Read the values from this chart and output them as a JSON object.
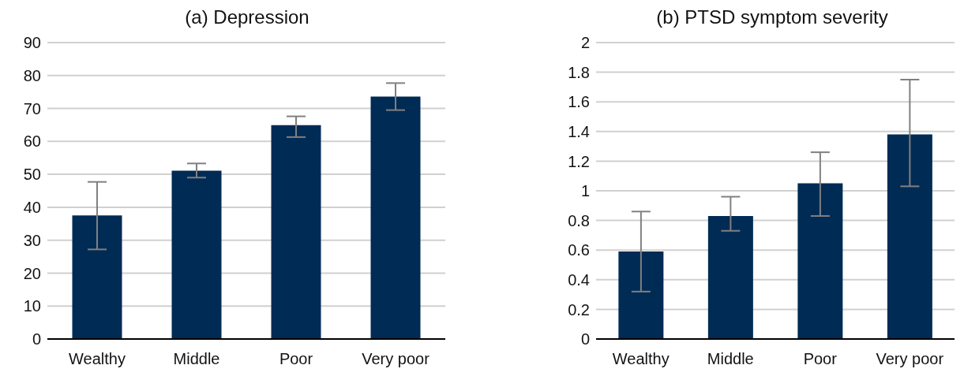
{
  "chart_data": [
    {
      "type": "bar",
      "title": "(a) Depression",
      "categories": [
        "Wealthy",
        "Middle",
        "Poor",
        "Very poor"
      ],
      "values": [
        37.5,
        51.1,
        64.9,
        73.6
      ],
      "errors": [
        [
          27.2,
          47.7
        ],
        [
          49.0,
          53.3
        ],
        [
          61.3,
          67.6
        ],
        [
          69.5,
          77.7
        ]
      ],
      "color": "#002b54",
      "ylim": [
        0,
        90
      ],
      "yticks": [
        0,
        10,
        20,
        30,
        40,
        50,
        60,
        70,
        80,
        90
      ],
      "grid": "y",
      "legend": false
    },
    {
      "type": "bar",
      "title": "(b) PTSD symptom severity",
      "categories": [
        "Wealthy",
        "Middle",
        "Poor",
        "Very poor"
      ],
      "values": [
        0.59,
        0.83,
        1.05,
        1.38
      ],
      "errors": [
        [
          0.32,
          0.86
        ],
        [
          0.73,
          0.96
        ],
        [
          0.83,
          1.26
        ],
        [
          1.03,
          1.75
        ]
      ],
      "color": "#002b54",
      "ylim": [
        0,
        2
      ],
      "yticks": [
        0,
        0.2,
        0.4,
        0.6,
        0.8,
        1,
        1.2,
        1.4,
        1.6,
        1.8,
        2
      ],
      "grid": "y",
      "legend": false
    }
  ]
}
